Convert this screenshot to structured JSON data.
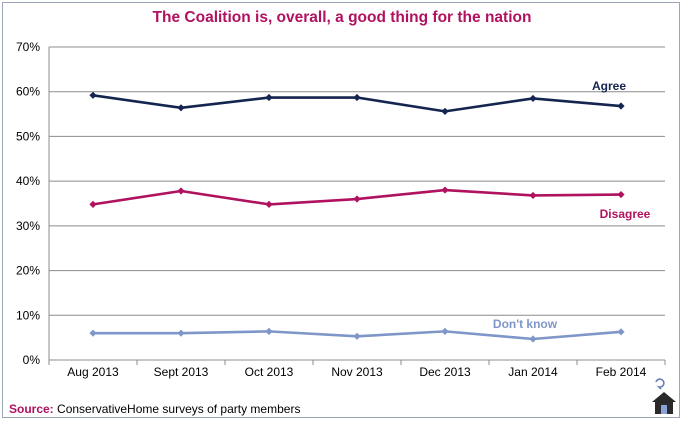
{
  "chart_data": {
    "type": "line",
    "title": "The Coalition is, overall, a good thing for the nation",
    "categories": [
      "Aug 2013",
      "Sept 2013",
      "Oct 2013",
      "Nov 2013",
      "Dec 2013",
      "Jan 2014",
      "Feb 2014"
    ],
    "y_ticks": [
      "0%",
      "10%",
      "20%",
      "30%",
      "40%",
      "50%",
      "60%",
      "70%"
    ],
    "ylim": [
      0,
      70
    ],
    "grid": true,
    "series": [
      {
        "name": "Agree",
        "values": [
          59.2,
          56.4,
          58.7,
          58.7,
          55.6,
          58.5,
          56.8
        ],
        "color": "#14254f"
      },
      {
        "name": "Disagree",
        "values": [
          34.8,
          37.8,
          34.8,
          36.0,
          38.0,
          36.8,
          37.0
        ],
        "color": "#b0125f"
      },
      {
        "name": "Don't know",
        "values": [
          6.0,
          6.0,
          6.4,
          5.3,
          6.4,
          4.7,
          6.3
        ],
        "color": "#7f96c9"
      }
    ]
  },
  "colors": {
    "title": "#b0125f",
    "source_label": "#b0125f",
    "grid": "#8c8c8c"
  },
  "source": {
    "label": "Source:",
    "text": " ConservativeHome surveys of party members"
  },
  "logo": {
    "icon": "house-logo-icon"
  }
}
